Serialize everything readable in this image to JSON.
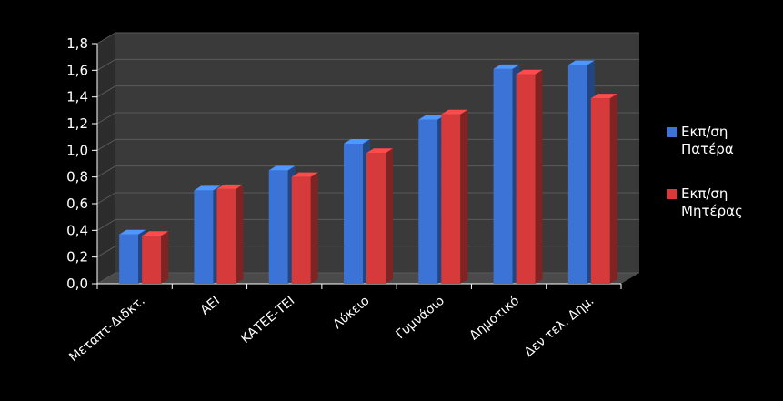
{
  "chart_data": {
    "type": "bar",
    "categories": [
      "Μεταπτ-Διδκτ.",
      "ΑΕΙ",
      "ΚΑΤΕΕ-ΤΕΙ",
      "Λύκειο",
      "Γυμνάσιο",
      "Δημοτικό",
      "Δεν τελ. Δημ."
    ],
    "series": [
      {
        "name": "Εκπ/ση Πατέρα",
        "name_lines": [
          "Εκπ/ση",
          "Πατέρα"
        ],
        "color": "#3b74d6",
        "values": [
          0.37,
          0.7,
          0.85,
          1.05,
          1.23,
          1.61,
          1.64
        ]
      },
      {
        "name": "Εκπ/ση Μητέρας",
        "name_lines": [
          "Εκπ/ση",
          "Μητέρας"
        ],
        "color": "#d63a3a",
        "values": [
          0.36,
          0.71,
          0.8,
          0.98,
          1.27,
          1.57,
          1.39
        ]
      }
    ],
    "title": "",
    "xlabel": "",
    "ylabel": "",
    "ylim": [
      0,
      1.8
    ],
    "yticks": [
      "0,0",
      "0,2",
      "0,4",
      "0,6",
      "0,8",
      "1,0",
      "1,2",
      "1,4",
      "1,6",
      "1,8"
    ],
    "grid": true,
    "legend": "right",
    "colors": {
      "background": "#000000",
      "plot_wall": "#3a3a3a",
      "grid": "#5a5a5a",
      "text": "#ffffff"
    }
  }
}
